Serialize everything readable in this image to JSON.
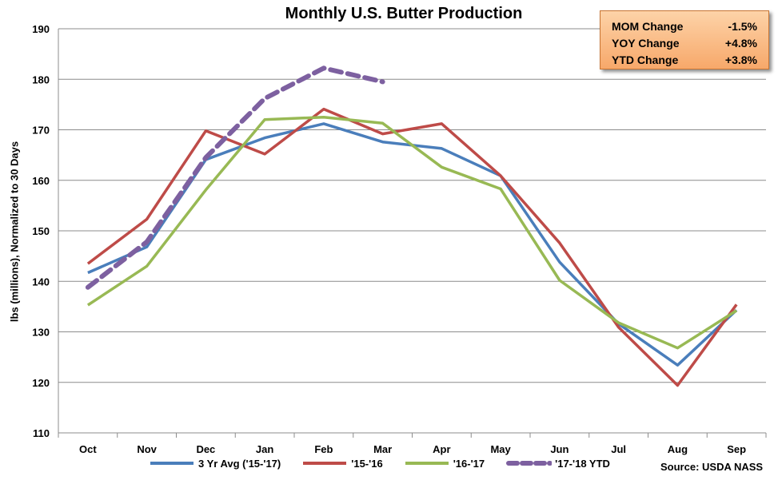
{
  "chart_data": {
    "type": "line",
    "title": "Monthly U.S. Butter Production",
    "xlabel": "",
    "ylabel": "lbs (millions), Normalized to 30 Days",
    "ylim": [
      110,
      190
    ],
    "yticks": [
      110,
      120,
      130,
      140,
      150,
      160,
      170,
      180,
      190
    ],
    "categories": [
      "Oct",
      "Nov",
      "Dec",
      "Jan",
      "Feb",
      "Mar",
      "Apr",
      "May",
      "Jun",
      "Jul",
      "Aug",
      "Sep"
    ],
    "grid": true,
    "legend_position": "bottom",
    "series": [
      {
        "name": "3 Yr Avg ('15-'17)",
        "color": "#4a7ebb",
        "dashed": false,
        "values": [
          141.7,
          146.8,
          164.1,
          168.4,
          171.2,
          167.6,
          166.3,
          160.9,
          143.8,
          131.6,
          123.4,
          134.3
        ]
      },
      {
        "name": "'15-'16",
        "color": "#be4b48",
        "dashed": false,
        "values": [
          143.5,
          152.3,
          169.8,
          165.2,
          174.1,
          169.2,
          171.2,
          160.9,
          147.6,
          130.9,
          119.4,
          135.4
        ]
      },
      {
        "name": "'16-'17",
        "color": "#98b954",
        "dashed": false,
        "values": [
          135.3,
          143.0,
          158.1,
          172.0,
          172.5,
          171.3,
          162.6,
          158.3,
          140.2,
          131.8,
          126.8,
          134.2
        ]
      },
      {
        "name": "'17-'18 YTD",
        "color": "#7d60a0",
        "dashed": true,
        "values": [
          138.8,
          147.8,
          164.5,
          176.2,
          182.2,
          179.5,
          null,
          null,
          null,
          null,
          null,
          null
        ]
      }
    ]
  },
  "stats": [
    {
      "label": "MOM Change",
      "value": "-1.5%"
    },
    {
      "label": "YOY Change",
      "value": "+4.8%"
    },
    {
      "label": "YTD Change",
      "value": "+3.8%"
    }
  ],
  "source": "Source: USDA NASS"
}
